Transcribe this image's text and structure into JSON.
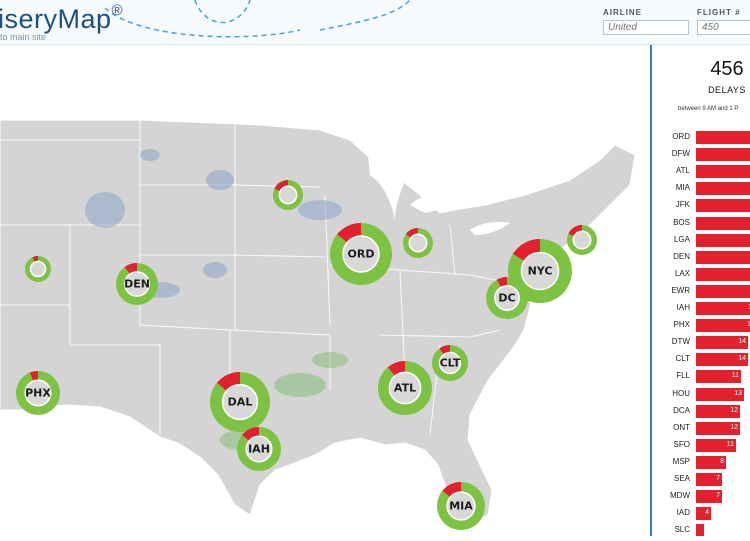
{
  "app": {
    "logo_text": "iseryMap",
    "logo_mark": "®",
    "sublink": "to main site"
  },
  "filters": {
    "airline": {
      "label": "AIRLINE",
      "placeholder": "United"
    },
    "flight": {
      "label": "FLIGHT #",
      "placeholder": "450"
    }
  },
  "colors": {
    "on_time": "#7dc242",
    "delayed": "#e3202d",
    "land": "#d4d4d4",
    "accent": "#2f7fc1"
  },
  "map": {
    "hubs": [
      {
        "code": "DEN",
        "delay_fraction": 0.1
      },
      {
        "code": "ORD",
        "delay_fraction": 0.14
      },
      {
        "code": "NYC",
        "delay_fraction": 0.16
      },
      {
        "code": "DC",
        "delay_fraction": 0.08
      },
      {
        "code": "ATL",
        "delay_fraction": 0.11
      },
      {
        "code": "CLT",
        "delay_fraction": 0.1
      },
      {
        "code": "DAL",
        "delay_fraction": 0.14
      },
      {
        "code": "IAH",
        "delay_fraction": 0.14
      },
      {
        "code": "PHX",
        "delay_fraction": 0.06
      },
      {
        "code": "MIA",
        "delay_fraction": 0.14
      },
      {
        "code": "",
        "delay_fraction": 0.18
      },
      {
        "code": "",
        "delay_fraction": 0.15
      },
      {
        "code": "",
        "delay_fraction": 0.18
      },
      {
        "code": "",
        "delay_fraction": 0.07
      }
    ]
  },
  "panel": {
    "total": "456",
    "total_label": "DELAYS",
    "range": "between 9 AM and 1 P",
    "airports": [
      {
        "code": "ORD",
        "value": ""
      },
      {
        "code": "DFW",
        "value": ""
      },
      {
        "code": "ATL",
        "value": ""
      },
      {
        "code": "MIA",
        "value": ""
      },
      {
        "code": "JFK",
        "value": ""
      },
      {
        "code": "BOS",
        "value": ""
      },
      {
        "code": "LGA",
        "value": ""
      },
      {
        "code": "DEN",
        "value": ""
      },
      {
        "code": "LAX",
        "value": ""
      },
      {
        "code": "EWR",
        "value": ""
      },
      {
        "code": "IAH",
        "value": "1"
      },
      {
        "code": "PHX",
        "value": "1"
      },
      {
        "code": "DTW",
        "value": "14"
      },
      {
        "code": "CLT",
        "value": "14"
      },
      {
        "code": "FLL",
        "value": "11"
      },
      {
        "code": "HOU",
        "value": "13"
      },
      {
        "code": "DCA",
        "value": "12"
      },
      {
        "code": "ONT",
        "value": "12"
      },
      {
        "code": "SFO",
        "value": "11"
      },
      {
        "code": "MSP",
        "value": "8"
      },
      {
        "code": "SEA",
        "value": "7"
      },
      {
        "code": "MDW",
        "value": "7"
      },
      {
        "code": "IAD",
        "value": "4"
      },
      {
        "code": "SLC",
        "value": ""
      }
    ]
  }
}
